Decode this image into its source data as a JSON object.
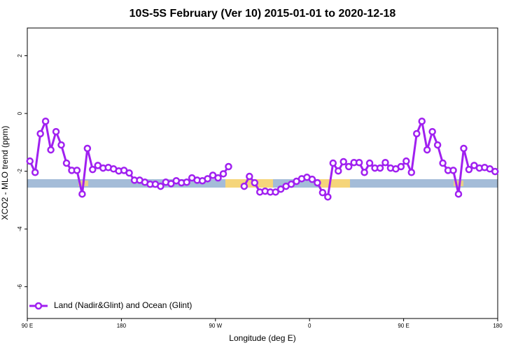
{
  "chart_data": {
    "type": "line",
    "title": "10S-5S February (Ver 10)   2015-01-01 to 2020-12-18",
    "x_label": "Longitude (deg E)",
    "y_label": "XCO2 - MLO trend (ppm)",
    "x": [
      92.5,
      97.5,
      102.5,
      107.5,
      112.5,
      117.5,
      122.5,
      127.5,
      132.5,
      137.5,
      142.5,
      147.5,
      152.5,
      157.5,
      162.5,
      167.5,
      172.5,
      177.5,
      182.5,
      187.5,
      192.5,
      197.5,
      202.5,
      207.5,
      212.5,
      217.5,
      222.5,
      227.5,
      232.5,
      237.5,
      242.5,
      247.5,
      252.5,
      257.5,
      262.5,
      267.5,
      272.5,
      277.5,
      282.5,
      287.5,
      292.5,
      297.5,
      302.5,
      307.5,
      312.5,
      317.5,
      322.5,
      327.5,
      332.5,
      337.5,
      342.5,
      347.5,
      352.5,
      357.5,
      362.5,
      367.5,
      372.5,
      377.5,
      382.5,
      387.5,
      392.5,
      397.5,
      402.5,
      407.5,
      412.5,
      417.5,
      422.5,
      427.5,
      432.5,
      437.5,
      442.5,
      447.5,
      452.5,
      457.5,
      462.5,
      467.5,
      472.5,
      477.5,
      482.5,
      487.5,
      492.5,
      497.5,
      502.5,
      507.5,
      512.5,
      517.5,
      522.5,
      527.5,
      532.5,
      537.5
    ],
    "series": [
      {
        "name": "Land (Nadir&Glint) and Ocean (Glint)",
        "color": "#a020f0",
        "values": [
          -1.65,
          -2.04,
          -0.7,
          -0.27,
          -1.26,
          -0.63,
          -1.09,
          -1.72,
          -1.97,
          -1.97,
          -2.79,
          -1.21,
          -1.94,
          -1.8,
          -1.89,
          -1.87,
          -1.92,
          -1.99,
          -1.97,
          -2.06,
          -2.31,
          -2.31,
          -2.38,
          -2.45,
          -2.45,
          -2.52,
          -2.38,
          -2.43,
          -2.33,
          -2.4,
          -2.38,
          -2.23,
          -2.31,
          -2.33,
          -2.26,
          -2.14,
          -2.23,
          -2.09,
          -1.84,
          null,
          null,
          -2.52,
          -2.18,
          -2.4,
          -2.72,
          -2.69,
          -2.72,
          -2.72,
          -2.62,
          -2.52,
          -2.45,
          -2.35,
          -2.26,
          -2.21,
          -2.28,
          -2.4,
          -2.74,
          -2.89,
          -1.72,
          -1.99,
          -1.67,
          -1.84,
          -1.7,
          -1.7,
          -2.04,
          -1.72,
          -1.89,
          -1.89,
          -1.7,
          -1.89,
          -1.92,
          -1.84,
          -1.65,
          -2.04,
          -0.7,
          -0.27,
          -1.26,
          -0.63,
          -1.09,
          -1.72,
          -1.97,
          -1.97,
          -2.79,
          -1.21,
          -1.94,
          -1.8,
          -1.89,
          -1.87,
          -1.92,
          -2.01
        ]
      }
    ],
    "xlim": [
      90,
      540
    ],
    "xticks": [
      {
        "value": 90,
        "label": "90 E"
      },
      180,
      {
        "value": 270,
        "label": "90 W"
      },
      {
        "value": 360,
        "label": "0"
      },
      {
        "value": 450,
        "label": "90 E"
      },
      {
        "value": 540,
        "label": "180"
      }
    ],
    "ylim": [
      -7.1,
      2.96
    ],
    "yticks": [
      2,
      0,
      -2,
      -4,
      -6
    ],
    "legend": "bottom-left"
  }
}
